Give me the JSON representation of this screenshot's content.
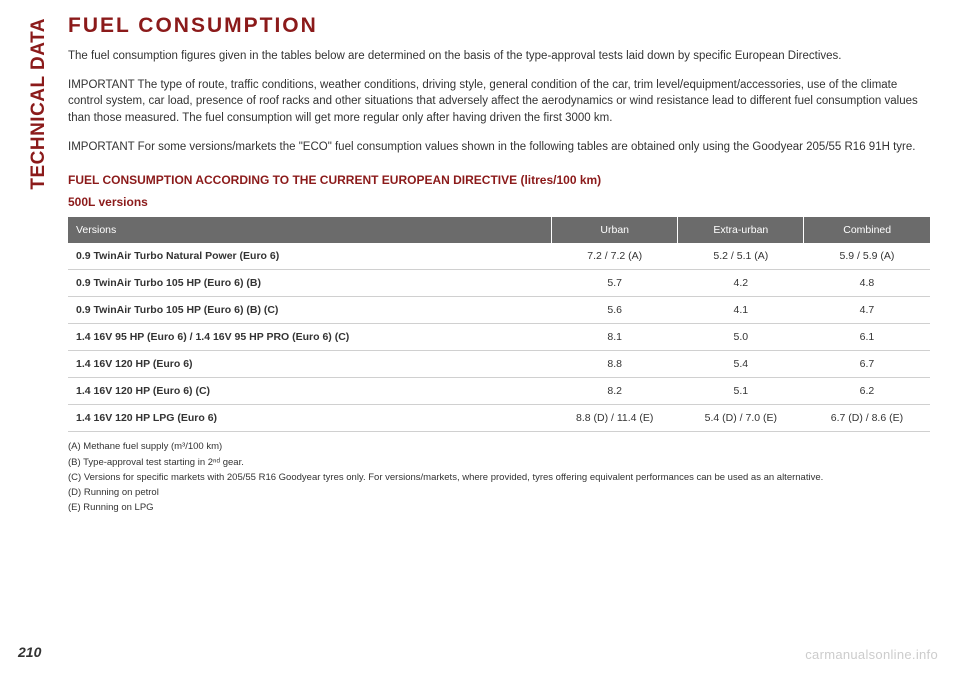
{
  "sidebar": {
    "label": "TECHNICAL DATA"
  },
  "title": "FUEL CONSUMPTION",
  "intro": "The fuel consumption figures given in the tables below are determined on the basis of the type-approval tests laid down by specific European Directives.",
  "important1": "IMPORTANT The type of route, traffic conditions, weather conditions, driving style, general condition of the car, trim level/equipment/accessories, use of the climate control system, car load, presence of roof racks and other situations that adversely affect the aerodynamics or wind resistance lead to different fuel consumption values than those measured. The fuel consumption will get more regular only after having driven the first 3000 km.",
  "important2": "IMPORTANT For some versions/markets the \"ECO\" fuel consumption values shown in the following tables are obtained only using the Goodyear 205/55 R16 91H tyre.",
  "subtitle": "FUEL CONSUMPTION ACCORDING TO THE CURRENT EUROPEAN DIRECTIVE (litres/100 km)",
  "versionsLabel": "500L versions",
  "table": {
    "headers": [
      "Versions",
      "Urban",
      "Extra-urban",
      "Combined"
    ],
    "rows": [
      [
        "0.9 TwinAir Turbo Natural Power (Euro 6)",
        "7.2 / 7.2 (A)",
        "5.2 / 5.1 (A)",
        "5.9 / 5.9 (A)"
      ],
      [
        "0.9 TwinAir Turbo 105 HP (Euro 6) (B)",
        "5.7",
        "4.2",
        "4.8"
      ],
      [
        "0.9 TwinAir Turbo 105 HP (Euro 6) (B) (C)",
        "5.6",
        "4.1",
        "4.7"
      ],
      [
        "1.4 16V 95 HP (Euro 6) / 1.4 16V 95 HP PRO (Euro 6) (C)",
        "8.1",
        "5.0",
        "6.1"
      ],
      [
        "1.4 16V 120 HP (Euro 6)",
        "8.8",
        "5.4",
        "6.7"
      ],
      [
        "1.4 16V 120 HP (Euro 6) (C)",
        "8.2",
        "5.1",
        "6.2"
      ],
      [
        "1.4 16V 120 HP LPG (Euro 6)",
        "8.8 (D) / 11.4 (E)",
        "5.4 (D) / 7.0 (E)",
        "6.7 (D) / 8.6 (E)"
      ]
    ]
  },
  "footnotes": [
    "(A) Methane fuel supply (m³/100 km)",
    "(B) Type-approval test starting in 2ⁿᵈ gear.",
    "(C) Versions for specific markets with 205/55 R16 Goodyear tyres only. For versions/markets, where provided, tyres offering equivalent performances can be used as an alternative.",
    "(D) Running on petrol",
    "(E) Running on LPG"
  ],
  "pageNumber": "210",
  "watermark": "carmanualsonline.info"
}
